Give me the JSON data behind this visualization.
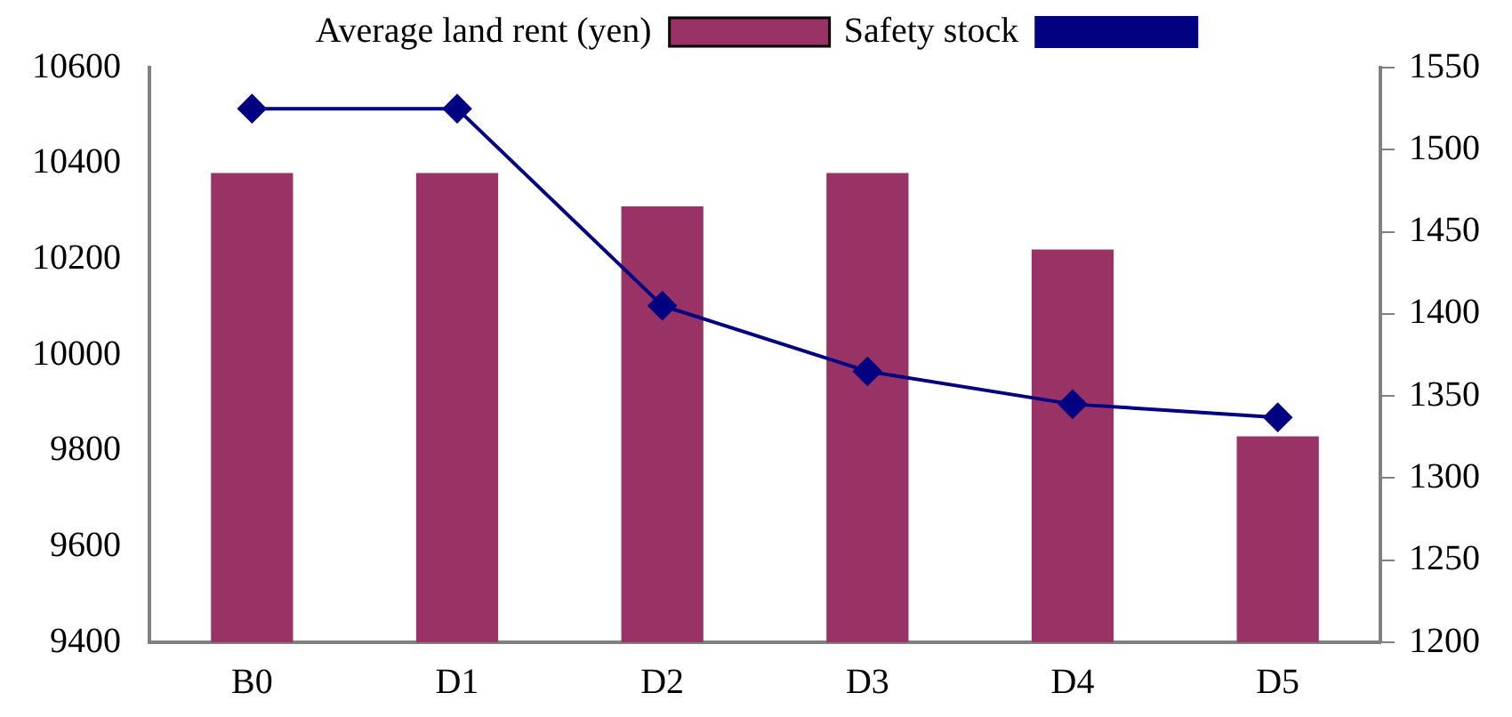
{
  "chart_data": {
    "type": "bar",
    "categories": [
      "B0",
      "D1",
      "D2",
      "D3",
      "D4",
      "D5"
    ],
    "series": [
      {
        "name": "Average land rent (yen)",
        "color": "#993366",
        "values": [
          10380,
          10380,
          10310,
          10380,
          10220,
          9830
        ]
      },
      {
        "name": "Safety stock",
        "type": "line",
        "axis": "y2",
        "color": "#000080",
        "marker": "diamond",
        "values": [
          1525,
          1525,
          1405,
          1365,
          1345,
          1337
        ]
      }
    ],
    "ylim": [
      9400,
      10600
    ],
    "yticks": [
      9400,
      9600,
      9800,
      10000,
      10200,
      10400,
      10600
    ],
    "y2lim": [
      1200,
      1550
    ],
    "y2ticks": [
      1200,
      1250,
      1300,
      1350,
      1400,
      1450,
      1500,
      1550
    ],
    "legend": "top",
    "grid": false
  }
}
